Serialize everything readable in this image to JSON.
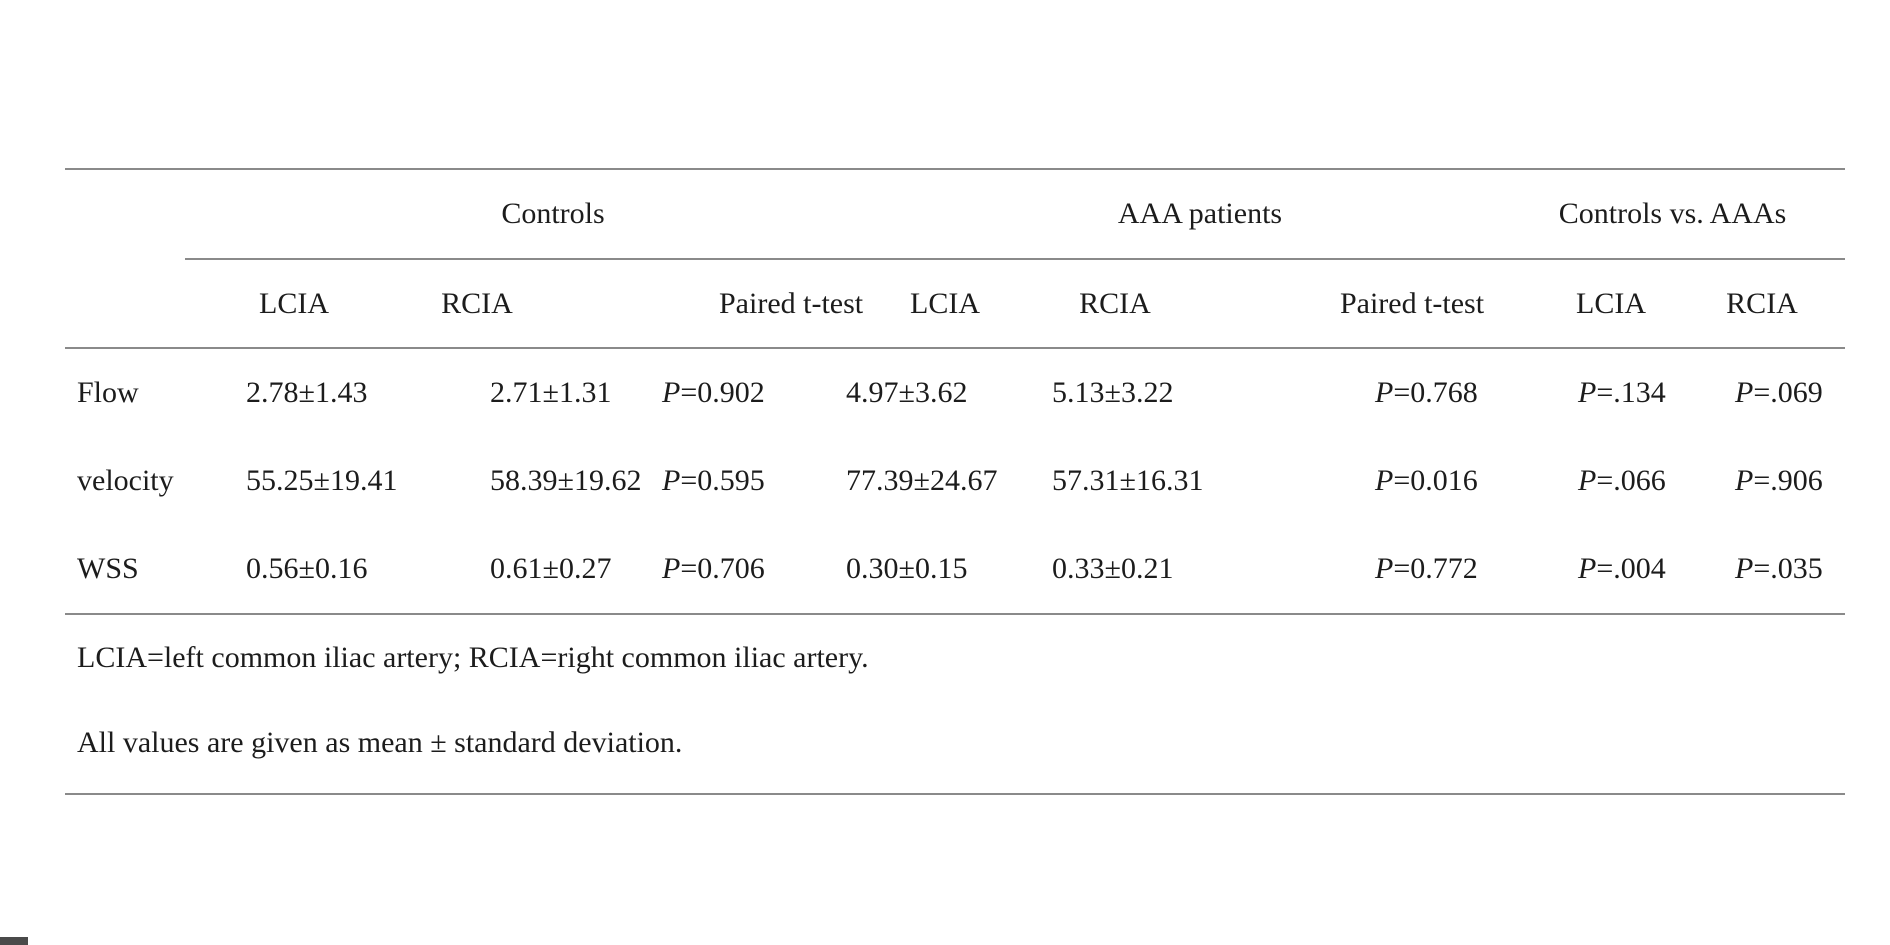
{
  "page": {
    "background_color": "#ffffff",
    "rule_color": "#8a8a8a",
    "text_color": "#1c1c1c"
  },
  "table": {
    "groups": [
      {
        "label": "Controls",
        "colspan": 3
      },
      {
        "label": "AAA patients",
        "colspan": 3
      },
      {
        "label": "Controls vs. AAAs",
        "colspan": 2
      }
    ],
    "subheaders": [
      "LCIA",
      "RCIA",
      "Paired t-test",
      "LCIA",
      "RCIA",
      "Paired t-test",
      "LCIA",
      "RCIA"
    ],
    "rows": [
      {
        "label": "Flow",
        "cells": [
          "2.78±1.43",
          "2.71±1.31",
          "P=0.902",
          "4.97±3.62",
          "5.13±3.22",
          "P=0.768",
          "P=.134",
          "P=.069"
        ]
      },
      {
        "label": "velocity",
        "cells": [
          "55.25±19.41",
          "58.39±19.62",
          "P=0.595",
          "77.39±24.67",
          "57.31±16.31",
          "P=0.016",
          "P=.066",
          "P=.906"
        ]
      },
      {
        "label": "WSS",
        "cells": [
          "0.56±0.16",
          "0.61±0.27",
          "P=0.706",
          "0.30±0.15",
          "0.33±0.21",
          "P=0.772",
          "P=.004",
          "P=.035"
        ]
      }
    ],
    "notes": [
      "LCIA=left common iliac artery; RCIA=right common iliac artery.",
      "All values are given as mean ± standard deviation."
    ]
  }
}
